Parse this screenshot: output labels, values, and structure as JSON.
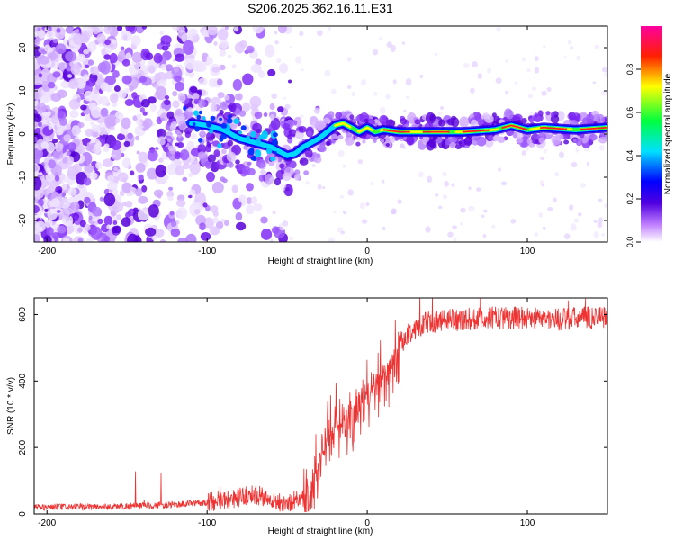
{
  "title": "S206.2025.362.16.11.E31",
  "chart_data": [
    {
      "type": "heatmap",
      "title": "S206.2025.362.16.11.E31",
      "xlabel": "Height of straight line (km)",
      "ylabel": "Frequency (Hz)",
      "xlim": [
        -208,
        150
      ],
      "ylim": [
        -25,
        25
      ],
      "x_ticks": [
        -200,
        -100,
        0,
        100
      ],
      "y_ticks": [
        -20,
        -10,
        0,
        10,
        20
      ],
      "colorbar": {
        "label": "Normalized spectral amplitude",
        "range": [
          0,
          1
        ],
        "ticks": [
          "0.0",
          "0.2",
          "0.4",
          "0.6",
          "0.8"
        ],
        "colormap": [
          "#ffffff",
          "#8a2be2",
          "#0000ff",
          "#00ffff",
          "#00ff00",
          "#ffff00",
          "#ff0000",
          "#ff00a0"
        ]
      },
      "trace": {
        "x": [
          -110,
          -100,
          -90,
          -80,
          -70,
          -60,
          -55,
          -50,
          -45,
          -40,
          -35,
          -30,
          -25,
          -20,
          -15,
          -10,
          -5,
          0,
          5,
          10,
          20,
          40,
          60,
          80,
          90,
          100,
          110,
          130,
          150
        ],
        "y": [
          2.5,
          2,
          1,
          -1,
          -2,
          -3,
          -4,
          -5,
          -4.5,
          -3,
          -2,
          -1,
          0.5,
          2,
          2.5,
          1.5,
          0.5,
          1.5,
          0.5,
          1,
          0.5,
          0.5,
          0.5,
          1,
          2,
          1,
          1.5,
          1,
          1.5
        ]
      }
    },
    {
      "type": "line",
      "title": "",
      "xlabel": "Height of straight line (km)",
      "ylabel": "SNR (10 * v/v)",
      "xlim": [
        -208,
        150
      ],
      "ylim": [
        0,
        650
      ],
      "x_ticks": [
        -200,
        -100,
        0,
        100
      ],
      "y_ticks": [
        0,
        200,
        400,
        600
      ],
      "color": "#ee3333",
      "trend": {
        "x": [
          -208,
          -160,
          -120,
          -100,
          -80,
          -70,
          -60,
          -50,
          -40,
          -35,
          -30,
          -25,
          -20,
          -15,
          -10,
          -5,
          0,
          5,
          10,
          15,
          20,
          25,
          30,
          40,
          60,
          80,
          100,
          120,
          150
        ],
        "y": [
          20,
          22,
          28,
          35,
          50,
          60,
          40,
          30,
          55,
          90,
          160,
          220,
          260,
          280,
          300,
          320,
          360,
          390,
          420,
          460,
          510,
          540,
          560,
          580,
          585,
          590,
          590,
          585,
          595
        ]
      }
    }
  ]
}
